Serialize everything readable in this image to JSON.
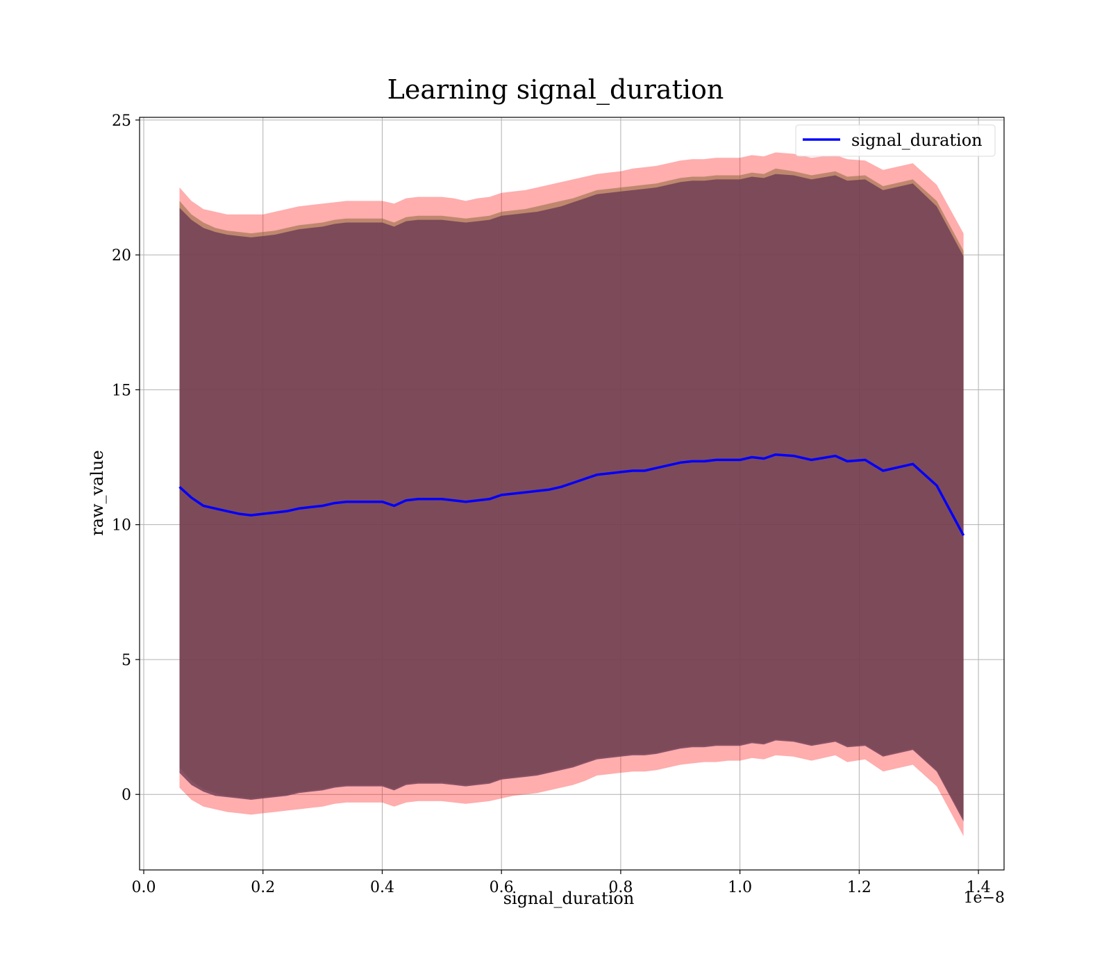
{
  "chart_data": {
    "type": "line",
    "title": "Learning signal_duration",
    "xlabel": "signal_duration",
    "ylabel": "raw_value",
    "x_offset_label": "1e−8",
    "xlim": [
      -0.007,
      1.443
    ],
    "ylim": [
      -2.8,
      25.1
    ],
    "x_ticks": [
      0.0,
      0.2,
      0.4,
      0.6,
      0.8,
      1.0,
      1.2,
      1.4
    ],
    "x_tick_labels": [
      "0.0",
      "0.2",
      "0.4",
      "0.6",
      "0.8",
      "1.0",
      "1.2",
      "1.4"
    ],
    "y_ticks": [
      0,
      5,
      10,
      15,
      20,
      25
    ],
    "y_tick_labels": [
      "0",
      "5",
      "10",
      "15",
      "20",
      "25"
    ],
    "grid": true,
    "legend_position": "top-right",
    "colors": {
      "line": "#0000ff",
      "outer_band": "#ff0000",
      "middle_band": "#8b6a3a",
      "inner_band": "#6e3d55"
    },
    "x": [
      0.06,
      0.08,
      0.1,
      0.12,
      0.14,
      0.16,
      0.18,
      0.2,
      0.22,
      0.24,
      0.26,
      0.28,
      0.3,
      0.32,
      0.34,
      0.36,
      0.38,
      0.4,
      0.42,
      0.44,
      0.46,
      0.48,
      0.5,
      0.52,
      0.54,
      0.56,
      0.58,
      0.6,
      0.62,
      0.64,
      0.66,
      0.68,
      0.7,
      0.72,
      0.74,
      0.76,
      0.78,
      0.8,
      0.82,
      0.84,
      0.86,
      0.88,
      0.9,
      0.92,
      0.94,
      0.96,
      0.98,
      1.0,
      1.02,
      1.04,
      1.06,
      1.09,
      1.12,
      1.16,
      1.18,
      1.21,
      1.24,
      1.29,
      1.33,
      1.375
    ],
    "series": [
      {
        "name": "signal_duration",
        "values": [
          11.4,
          11.0,
          10.7,
          10.6,
          10.5,
          10.4,
          10.35,
          10.4,
          10.45,
          10.5,
          10.6,
          10.65,
          10.7,
          10.8,
          10.85,
          10.85,
          10.85,
          10.85,
          10.7,
          10.9,
          10.95,
          10.95,
          10.95,
          10.9,
          10.85,
          10.9,
          10.95,
          11.1,
          11.15,
          11.2,
          11.25,
          11.3,
          11.4,
          11.55,
          11.7,
          11.85,
          11.9,
          11.95,
          12.0,
          12.0,
          12.1,
          12.2,
          12.3,
          12.35,
          12.35,
          12.4,
          12.4,
          12.4,
          12.5,
          12.45,
          12.6,
          12.55,
          12.4,
          12.55,
          12.35,
          12.4,
          12.0,
          12.25,
          11.45,
          9.6
        ]
      }
    ],
    "bands": [
      {
        "upper": [
          22.5,
          22.0,
          21.7,
          21.6,
          21.5,
          21.5,
          21.5,
          21.5,
          21.6,
          21.7,
          21.8,
          21.85,
          21.9,
          21.95,
          22.0,
          22.0,
          22.0,
          22.0,
          21.9,
          22.1,
          22.15,
          22.15,
          22.15,
          22.1,
          22.0,
          22.1,
          22.15,
          22.3,
          22.35,
          22.4,
          22.5,
          22.6,
          22.7,
          22.8,
          22.9,
          23.0,
          23.05,
          23.1,
          23.2,
          23.25,
          23.3,
          23.4,
          23.5,
          23.55,
          23.55,
          23.6,
          23.6,
          23.6,
          23.7,
          23.65,
          23.8,
          23.75,
          23.6,
          23.7,
          23.55,
          23.5,
          23.15,
          23.4,
          22.6,
          20.8
        ],
        "lower": [
          0.25,
          -0.2,
          -0.45,
          -0.55,
          -0.65,
          -0.7,
          -0.75,
          -0.7,
          -0.65,
          -0.6,
          -0.55,
          -0.5,
          -0.45,
          -0.35,
          -0.3,
          -0.3,
          -0.3,
          -0.3,
          -0.45,
          -0.3,
          -0.25,
          -0.25,
          -0.25,
          -0.3,
          -0.35,
          -0.3,
          -0.25,
          -0.15,
          -0.05,
          0.0,
          0.05,
          0.15,
          0.25,
          0.35,
          0.5,
          0.7,
          0.75,
          0.8,
          0.85,
          0.85,
          0.9,
          1.0,
          1.1,
          1.15,
          1.2,
          1.2,
          1.25,
          1.25,
          1.35,
          1.3,
          1.45,
          1.4,
          1.25,
          1.45,
          1.2,
          1.3,
          0.85,
          1.1,
          0.3,
          -1.55
        ]
      },
      {
        "upper": [
          22.0,
          21.5,
          21.2,
          21.0,
          20.9,
          20.85,
          20.8,
          20.85,
          20.9,
          21.0,
          21.1,
          21.15,
          21.2,
          21.3,
          21.35,
          21.35,
          21.35,
          21.35,
          21.2,
          21.4,
          21.45,
          21.45,
          21.45,
          21.4,
          21.35,
          21.4,
          21.45,
          21.6,
          21.65,
          21.7,
          21.8,
          21.9,
          22.0,
          22.1,
          22.25,
          22.4,
          22.45,
          22.5,
          22.55,
          22.6,
          22.65,
          22.75,
          22.85,
          22.9,
          22.9,
          22.95,
          22.95,
          22.95,
          23.05,
          23.0,
          23.2,
          23.1,
          22.95,
          23.1,
          22.9,
          22.95,
          22.55,
          22.8,
          22.0,
          20.15
        ],
        "lower": [
          1.0,
          0.5,
          0.2,
          0.05,
          -0.05,
          -0.1,
          -0.15,
          -0.1,
          -0.05,
          0.0,
          0.1,
          0.15,
          0.2,
          0.3,
          0.35,
          0.35,
          0.35,
          0.35,
          0.2,
          0.4,
          0.45,
          0.45,
          0.45,
          0.4,
          0.35,
          0.4,
          0.45,
          0.6,
          0.65,
          0.7,
          0.75,
          0.85,
          0.95,
          1.05,
          1.2,
          1.35,
          1.4,
          1.45,
          1.5,
          1.5,
          1.55,
          1.65,
          1.75,
          1.8,
          1.8,
          1.85,
          1.85,
          1.85,
          1.95,
          1.9,
          2.05,
          2.0,
          1.85,
          2.0,
          1.8,
          1.85,
          1.45,
          1.7,
          0.9,
          -0.9
        ]
      },
      {
        "upper": [
          21.75,
          21.3,
          21.0,
          20.85,
          20.75,
          20.7,
          20.65,
          20.7,
          20.75,
          20.85,
          20.95,
          21.0,
          21.05,
          21.15,
          21.2,
          21.2,
          21.2,
          21.2,
          21.05,
          21.25,
          21.3,
          21.3,
          21.3,
          21.25,
          21.2,
          21.25,
          21.3,
          21.45,
          21.5,
          21.55,
          21.6,
          21.7,
          21.8,
          21.95,
          22.1,
          22.25,
          22.3,
          22.35,
          22.4,
          22.45,
          22.5,
          22.6,
          22.7,
          22.75,
          22.75,
          22.8,
          22.8,
          22.8,
          22.9,
          22.85,
          23.0,
          22.95,
          22.8,
          22.95,
          22.75,
          22.8,
          22.4,
          22.65,
          21.8,
          19.95
        ],
        "lower": [
          0.8,
          0.35,
          0.1,
          -0.05,
          -0.1,
          -0.15,
          -0.2,
          -0.15,
          -0.1,
          -0.05,
          0.05,
          0.1,
          0.15,
          0.25,
          0.3,
          0.3,
          0.3,
          0.3,
          0.15,
          0.35,
          0.4,
          0.4,
          0.4,
          0.35,
          0.3,
          0.35,
          0.4,
          0.55,
          0.6,
          0.65,
          0.7,
          0.8,
          0.9,
          1.0,
          1.15,
          1.3,
          1.35,
          1.4,
          1.45,
          1.45,
          1.5,
          1.6,
          1.7,
          1.75,
          1.75,
          1.8,
          1.8,
          1.8,
          1.9,
          1.85,
          2.0,
          1.95,
          1.8,
          1.95,
          1.75,
          1.8,
          1.4,
          1.65,
          0.85,
          -1.0
        ]
      }
    ]
  }
}
